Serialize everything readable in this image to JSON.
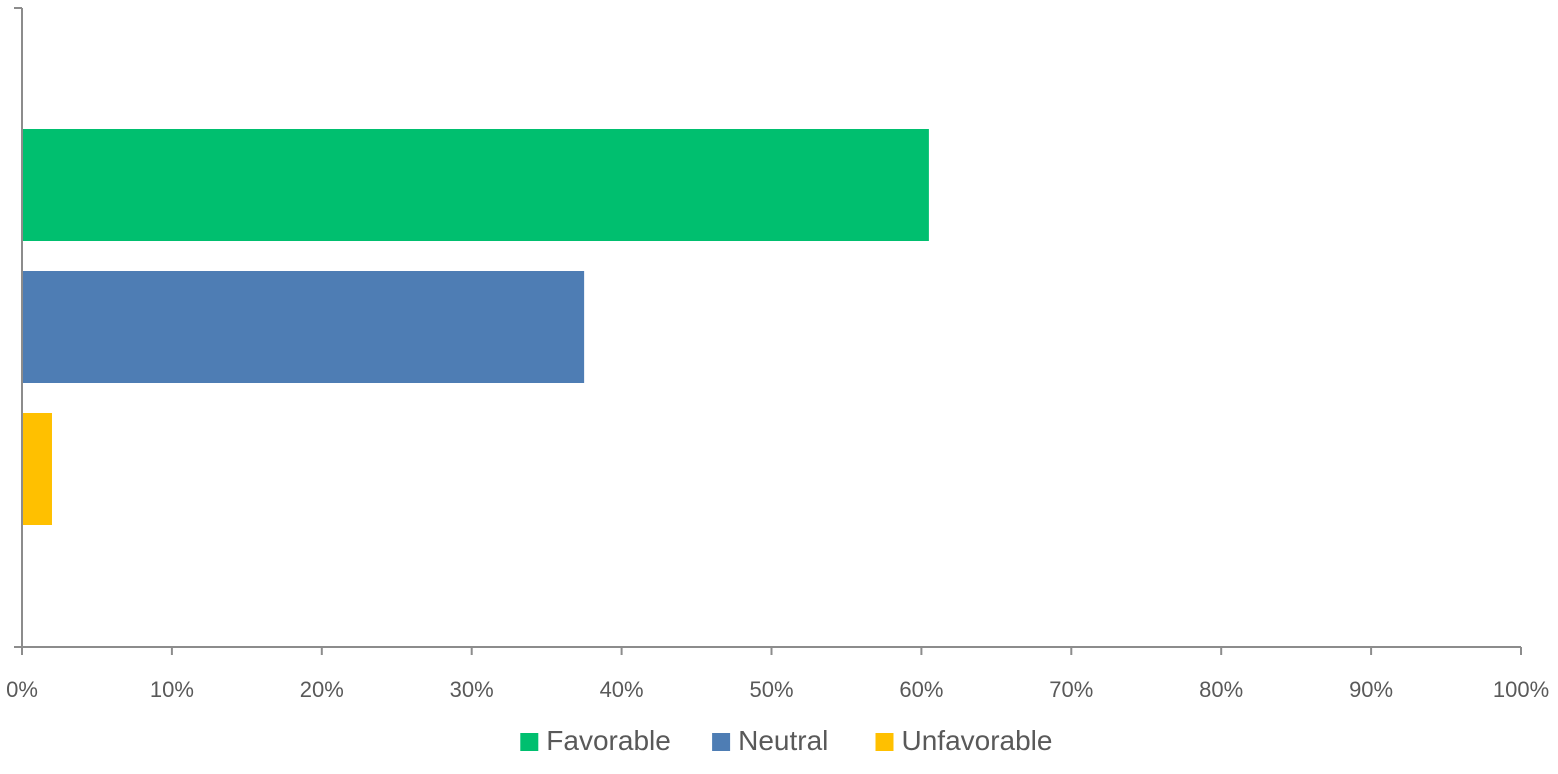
{
  "chart_data": {
    "type": "bar",
    "orientation": "horizontal",
    "xlim": [
      0,
      100
    ],
    "x_ticks": [
      0,
      10,
      20,
      30,
      40,
      50,
      60,
      70,
      80,
      90,
      100
    ],
    "x_tick_labels": [
      "0%",
      "10%",
      "20%",
      "30%",
      "40%",
      "50%",
      "60%",
      "70%",
      "80%",
      "90%",
      "100%"
    ],
    "x_unit": "%",
    "grid": false,
    "legend_position": "bottom",
    "series": [
      {
        "name": "Favorable",
        "value": 60.5,
        "color": "#00BF6F"
      },
      {
        "name": "Neutral",
        "value": 37.5,
        "color": "#4E7DB4"
      },
      {
        "name": "Unfavorable",
        "value": 2.0,
        "color": "#FFC000"
      }
    ]
  }
}
